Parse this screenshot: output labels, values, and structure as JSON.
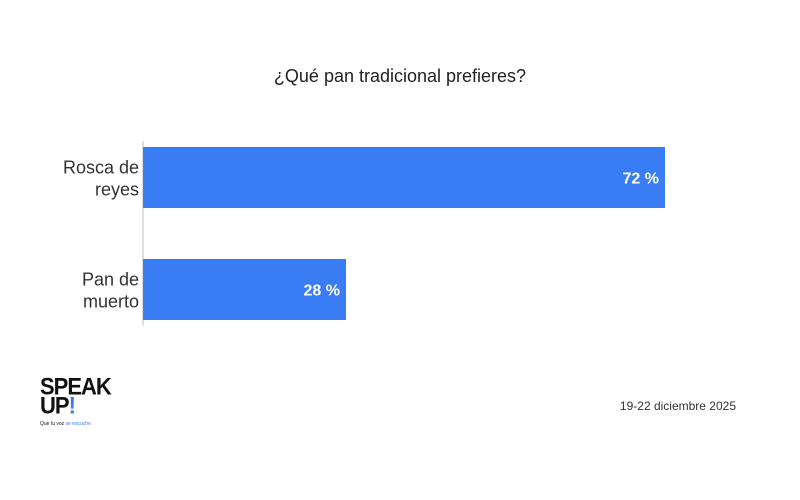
{
  "chart_data": {
    "type": "bar",
    "orientation": "horizontal",
    "title": "¿Qué pan tradicional prefieres?",
    "categories": [
      [
        "Rosca de",
        "reyes"
      ],
      [
        "Pan de",
        "muerto"
      ]
    ],
    "values": [
      72,
      28
    ],
    "value_labels": [
      "72 %",
      "28 %"
    ],
    "xlim": [
      0,
      100
    ],
    "bar_color": "#3a7cf4",
    "grid": false,
    "legend": "none"
  },
  "logo": {
    "line1": "SPEAK",
    "line2": "UP",
    "mark": "!",
    "tagline_start": "Que tu voz",
    "tagline_accent": "se escuche"
  },
  "footer": {
    "date": "19-22 diciembre 2025"
  },
  "colors": {
    "accent": "#3a78f2"
  }
}
